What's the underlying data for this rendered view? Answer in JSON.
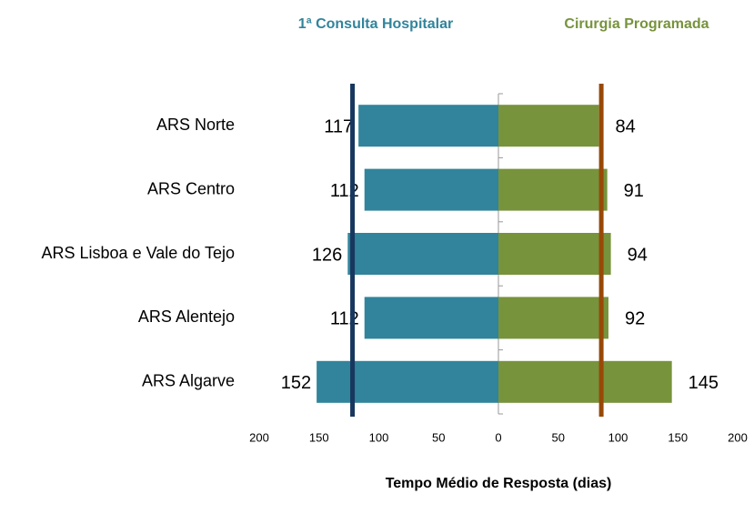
{
  "chart_data": {
    "type": "butterfly",
    "xlabel": "Tempo Médio de Resposta (dias)",
    "categories": [
      "ARS Norte",
      "ARS Centro",
      "ARS Lisboa e Vale do Tejo",
      "ARS Alentejo",
      "ARS Algarve"
    ],
    "series": [
      {
        "name": "1ª Consulta Hospitalar",
        "color": "#31849b",
        "side": "left",
        "values": [
          117,
          112,
          126,
          112,
          152
        ],
        "mean": 122,
        "mean_color": "#17375e"
      },
      {
        "name": "Cirurgia Programada",
        "color": "#77933c",
        "side": "right",
        "values": [
          84,
          91,
          94,
          92,
          145
        ],
        "mean": 86,
        "mean_color": "#984807"
      }
    ],
    "xlim": [
      0,
      200
    ],
    "xticks": [
      0,
      50,
      100,
      150,
      200
    ]
  }
}
